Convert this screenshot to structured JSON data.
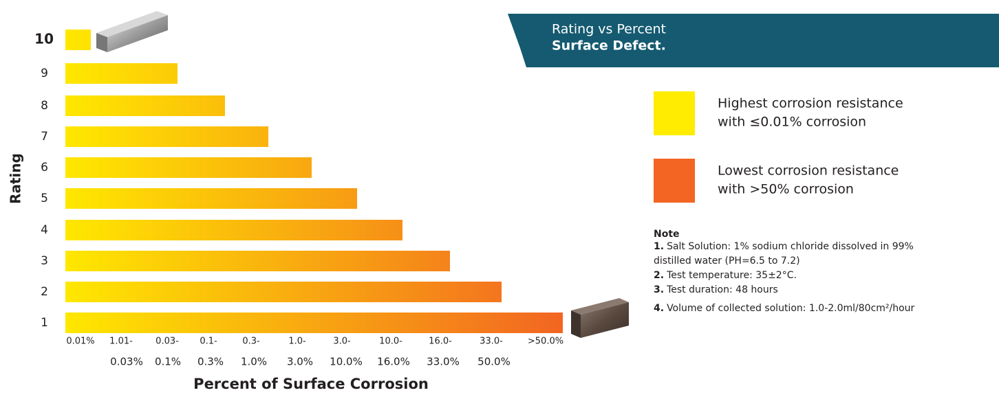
{
  "chart_data": {
    "type": "bar",
    "y_axis_label": "Rating",
    "x_axis_label": "Percent of Surface Corrosion",
    "categories": [
      "10",
      "9",
      "8",
      "7",
      "6",
      "5",
      "4",
      "3",
      "2",
      "1"
    ],
    "x_labels_top": [
      "0.01%",
      "1.01-",
      "0.03-",
      "0.1-",
      "0.3-",
      "1.0-",
      "3.0-",
      "10.0-",
      "16.0-",
      "33.0-",
      ">50.0%"
    ],
    "x_labels_bottom": [
      null,
      "0.03%",
      "0.1%",
      "0.3%",
      "1.0%",
      "3.0%",
      "10.0%",
      "16.0%",
      "33.0%",
      "50.0%",
      null
    ],
    "gradient": [
      "#ffe800",
      "#f26522"
    ]
  },
  "panel": {
    "title": "Rating vs Percent",
    "title_bold": "Surface Defect.",
    "legend": [
      {
        "color": "#ffec00",
        "line1": "Highest corrosion resistance",
        "line2": "with ≤0.01% corrosion"
      },
      {
        "color": "#f26522",
        "line1": "Lowest corrosion resistance",
        "line2": "with >50% corrosion"
      }
    ],
    "note_title": "Note",
    "notes": [
      {
        "num": "1.",
        "text": "Salt Solution: 1% sodium chloride dissolved in 99%",
        "text2": "distilled water (PH=6.5 to 7.2)"
      },
      {
        "num": "2.",
        "text": "Test temperature: 35±2°C."
      },
      {
        "num": "3.",
        "text": "Test duration: 48 hours"
      },
      {
        "num": "4.",
        "text": "Volume of collected solution: 1.0-2.0ml/80cm²/hour"
      }
    ]
  }
}
